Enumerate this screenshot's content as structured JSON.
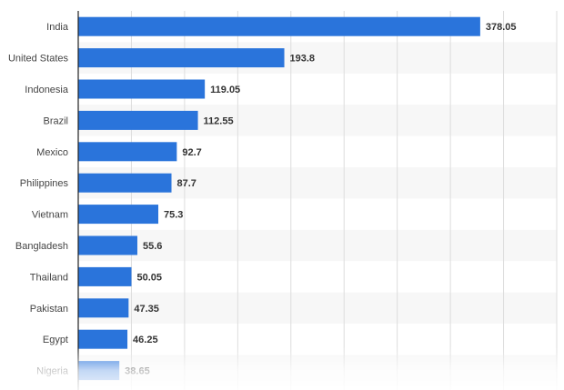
{
  "colors": {
    "bar": "#2a74db",
    "band": "#f7f7f7",
    "grid": "#dddddd",
    "axis": "#222222",
    "category_text": "#444444",
    "value_text": "#333333"
  },
  "chart_data": {
    "type": "bar",
    "orientation": "horizontal",
    "categories": [
      "India",
      "United States",
      "Indonesia",
      "Brazil",
      "Mexico",
      "Philippines",
      "Vietnam",
      "Bangladesh",
      "Thailand",
      "Pakistan",
      "Egypt",
      "Nigeria"
    ],
    "values": [
      378.05,
      193.8,
      119.05,
      112.55,
      92.7,
      87.7,
      75.3,
      55.6,
      50.05,
      47.35,
      46.25,
      38.65
    ],
    "value_labels": [
      "378.05",
      "193.8",
      "119.05",
      "112.55",
      "92.7",
      "87.7",
      "75.3",
      "55.6",
      "50.05",
      "47.35",
      "46.25",
      "38.65"
    ],
    "xlim": [
      0,
      450
    ],
    "grid": true,
    "grid_interval": 50,
    "alternating_bands": true,
    "title": "",
    "xlabel": "",
    "ylabel": ""
  }
}
